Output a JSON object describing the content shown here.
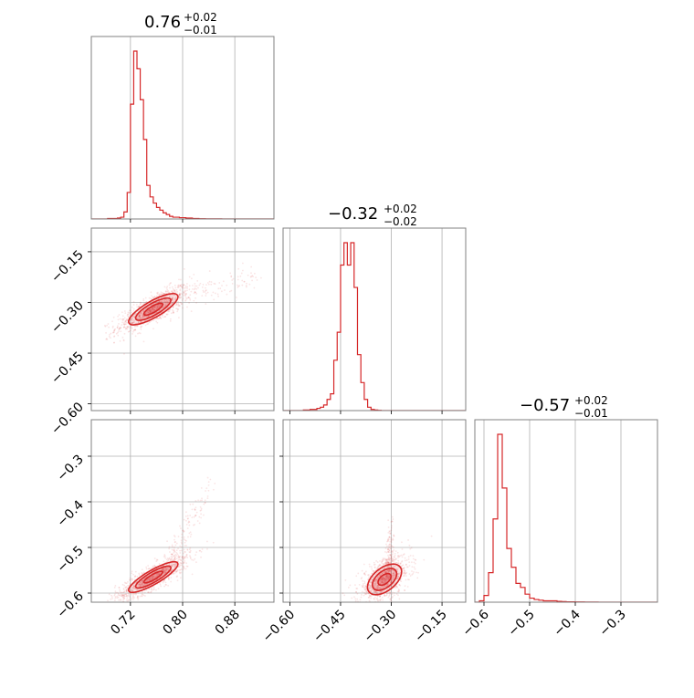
{
  "chart_data": {
    "type": "corner",
    "color": "#d62728",
    "grid": true,
    "parameters": [
      {
        "index": 0,
        "title": {
          "value": "0.76",
          "plus": "+0.02",
          "minus": "−0.01"
        },
        "range": [
          0.66,
          0.94
        ]
      },
      {
        "index": 1,
        "title": {
          "value": "−0.32",
          "plus": "+0.02",
          "minus": "−0.02"
        },
        "range": [
          -0.62,
          -0.08
        ]
      },
      {
        "index": 2,
        "title": {
          "value": "−0.57",
          "plus": "+0.02",
          "minus": "−0.01"
        },
        "range": [
          -0.62,
          -0.22
        ]
      }
    ],
    "axis_ticks": {
      "x0": [
        {
          "v": 0.72,
          "label": "0.72"
        },
        {
          "v": 0.8,
          "label": "0.80"
        },
        {
          "v": 0.88,
          "label": "0.88"
        }
      ],
      "x1": [
        {
          "v": -0.6,
          "label": "−0.60"
        },
        {
          "v": -0.45,
          "label": "−0.45"
        },
        {
          "v": -0.3,
          "label": "−0.30"
        },
        {
          "v": -0.15,
          "label": "−0.15"
        }
      ],
      "x2": [
        {
          "v": -0.6,
          "label": "−0.6"
        },
        {
          "v": -0.5,
          "label": "−0.5"
        },
        {
          "v": -0.4,
          "label": "−0.4"
        },
        {
          "v": -0.3,
          "label": "−0.3"
        }
      ],
      "y1": [
        {
          "v": -0.15,
          "label": "−0.15"
        },
        {
          "v": -0.3,
          "label": "−0.30"
        },
        {
          "v": -0.45,
          "label": "−0.45"
        },
        {
          "v": -0.6,
          "label": "−0.60"
        }
      ],
      "y2": [
        {
          "v": -0.3,
          "label": "−0.3"
        },
        {
          "v": -0.4,
          "label": "−0.4"
        },
        {
          "v": -0.5,
          "label": "−0.5"
        },
        {
          "v": -0.6,
          "label": "−0.6"
        }
      ]
    },
    "histograms": [
      {
        "param": 0,
        "x_start": 0.66,
        "bin_width": 0.005,
        "counts": [
          0,
          0,
          0,
          0,
          0,
          0.5,
          0.5,
          0.5,
          1,
          2,
          8,
          30,
          130,
          190,
          170,
          135,
          90,
          38,
          25,
          18,
          13,
          10,
          7,
          5,
          3,
          2,
          2,
          1.5,
          1.5,
          1,
          1,
          0.5,
          0.5,
          0.3,
          0.3,
          0.2,
          0.2,
          0.1,
          0.1,
          0.1,
          0.05,
          0.05,
          0.05,
          0.05,
          0.05,
          0.05,
          0.05,
          0.05,
          0.05,
          0.05,
          0.05,
          0.05,
          0.05,
          0.05,
          0.05,
          0.05
        ]
      },
      {
        "param": 1,
        "x_start": -0.62,
        "bin_width": 0.01,
        "counts": [
          0,
          0,
          0,
          0,
          0,
          0,
          0.5,
          0.5,
          1,
          1,
          2,
          3,
          5,
          10,
          15,
          45,
          70,
          130,
          150,
          130,
          150,
          110,
          50,
          25,
          10,
          3,
          1,
          0.5,
          0.2,
          0,
          0,
          0,
          0,
          0,
          0,
          0,
          0,
          0,
          0,
          0,
          0,
          0,
          0,
          0,
          0,
          0,
          0,
          0,
          0,
          0,
          0,
          0,
          0,
          0
        ]
      },
      {
        "param": 2,
        "x_start": -0.62,
        "bin_width": 0.01,
        "counts": [
          0,
          1,
          5,
          22,
          62,
          125,
          85,
          40,
          26,
          14,
          11,
          6,
          3,
          2,
          1.5,
          1,
          1,
          1,
          0.6,
          0.4,
          0.3,
          0.3,
          0.2,
          0.2,
          0.1,
          0.1,
          0.1,
          0.05,
          0.05,
          0,
          0,
          0,
          0,
          0,
          0,
          0,
          0,
          0,
          0,
          0
        ]
      }
    ],
    "samples_2d": [
      {
        "x_param": 0,
        "y_param": 1,
        "center": [
          0.755,
          -0.32
        ],
        "std": [
          0.018,
          0.022
        ],
        "corr": 0.8,
        "tail": {
          "from": [
            0.77,
            -0.3
          ],
          "to": [
            0.92,
            -0.22
          ],
          "spread": 0.02
        }
      },
      {
        "x_param": 0,
        "y_param": 2,
        "center": [
          0.755,
          -0.565
        ],
        "std": [
          0.018,
          0.016
        ],
        "corr": 0.85,
        "tail": {
          "from": [
            0.78,
            -0.53
          ],
          "to": [
            0.84,
            -0.36
          ],
          "spread": 0.012
        }
      },
      {
        "x_param": 1,
        "y_param": 2,
        "center": [
          -0.32,
          -0.57
        ],
        "std": [
          0.024,
          0.016
        ],
        "corr": 0.5,
        "tail": {
          "from": [
            -0.31,
            -0.55
          ],
          "to": [
            -0.3,
            -0.44
          ],
          "spread": 0.01
        }
      }
    ]
  }
}
